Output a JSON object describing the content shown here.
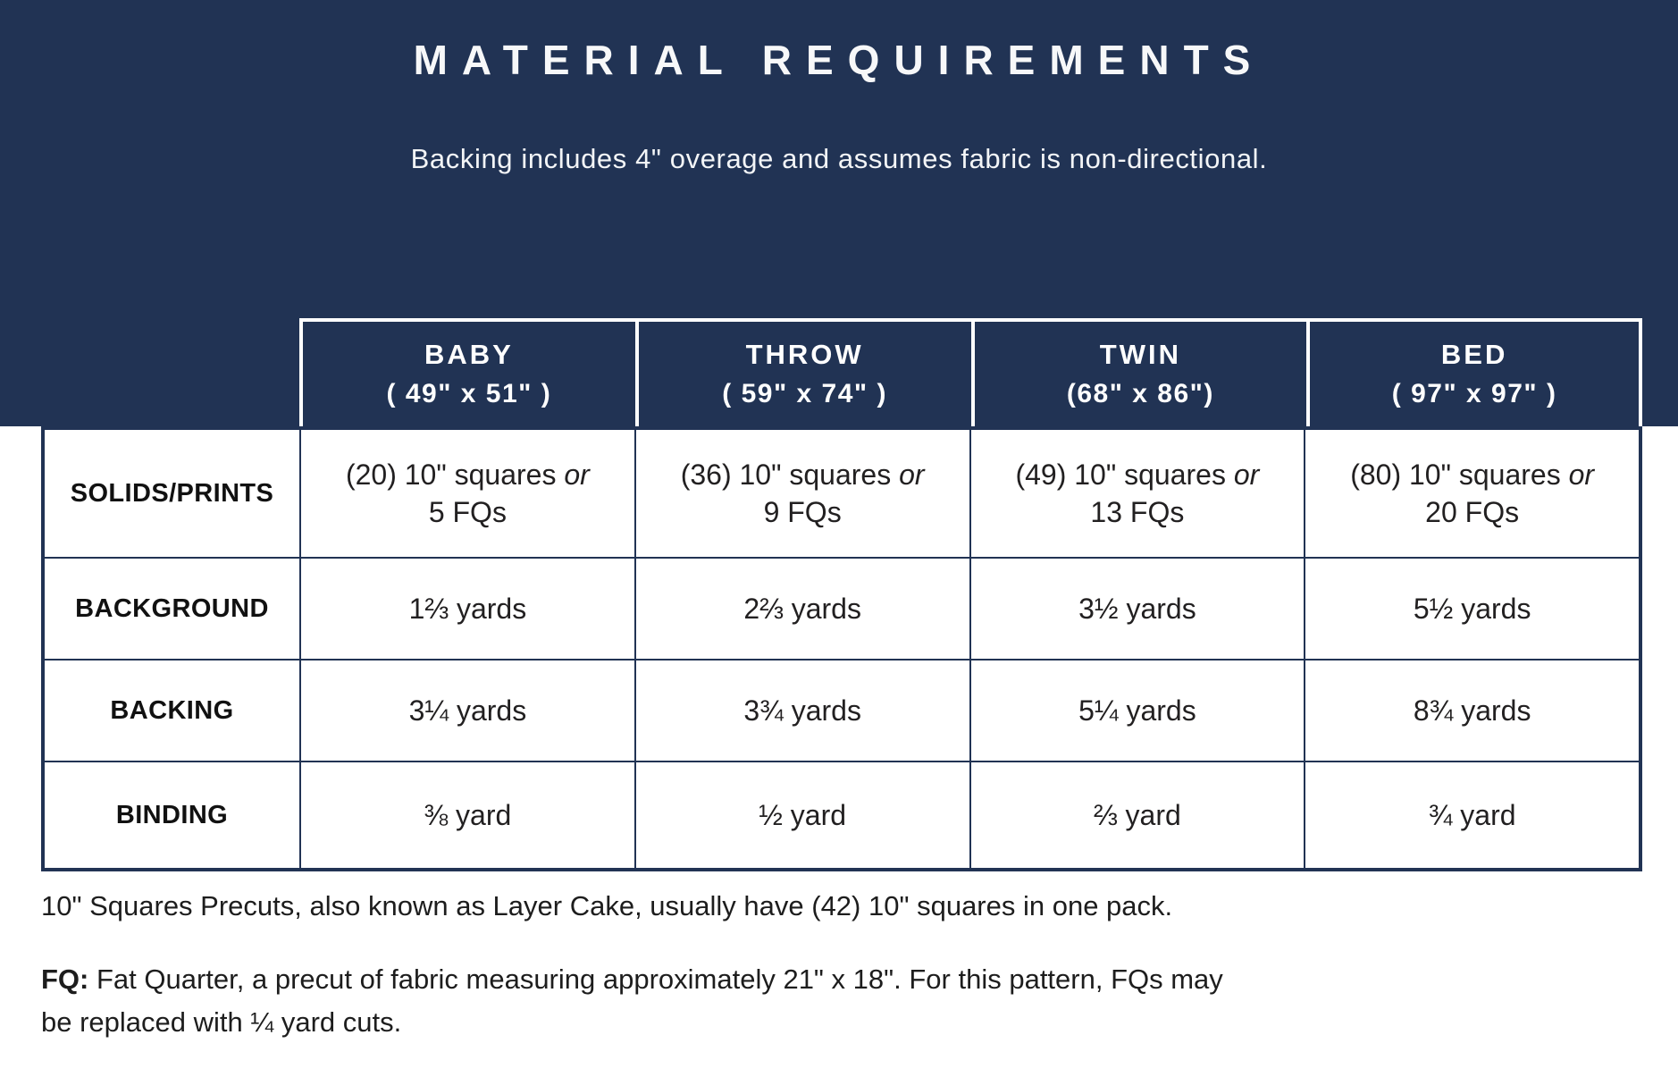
{
  "colors": {
    "navy": "#213354",
    "white": "#ffffff",
    "body_text": "#222021"
  },
  "header": {
    "title": "MATERIAL REQUIREMENTS",
    "subtitle": "Backing includes 4\" overage and assumes fabric is non-directional."
  },
  "table": {
    "columns": [
      {
        "name": "BABY",
        "size": "( 49\" x 51\" )"
      },
      {
        "name": "THROW",
        "size": "( 59\" x 74\" )"
      },
      {
        "name": "TWIN",
        "size": "(68\" x 86\")"
      },
      {
        "name": "BED",
        "size": "( 97\" x 97\" )"
      }
    ],
    "rows": [
      {
        "label": "SOLIDS/PRINTS",
        "cells": [
          {
            "line1": "(20) 10\" squares",
            "conj": "or",
            "line2": "5 FQs"
          },
          {
            "line1": "(36) 10\" squares",
            "conj": "or",
            "line2": "9 FQs"
          },
          {
            "line1": "(49) 10\" squares",
            "conj": "or",
            "line2": "13 FQs"
          },
          {
            "line1": "(80) 10\" squares",
            "conj": "or",
            "line2": "20 FQs"
          }
        ]
      },
      {
        "label": "BACKGROUND",
        "cells": [
          "1⅔ yards",
          "2⅔ yards",
          "3½ yards",
          "5½ yards"
        ]
      },
      {
        "label": "BACKING",
        "cells": [
          "3¼ yards",
          "3¾ yards",
          "5¼ yards",
          "8¾ yards"
        ]
      },
      {
        "label": "BINDING",
        "cells": [
          "⅜ yard",
          "½ yard",
          "⅔ yard",
          "¾ yard"
        ]
      }
    ]
  },
  "notes": {
    "note1": "10\" Squares Precuts, also known as Layer Cake, usually have (42) 10\" squares in one pack.",
    "note2_label": "FQ:",
    "note2_line1": " Fat Quarter, a precut of fabric measuring approximately 21\" x 18\". For this pattern, FQs may",
    "note2_line2": "be replaced with ¼ yard cuts."
  }
}
